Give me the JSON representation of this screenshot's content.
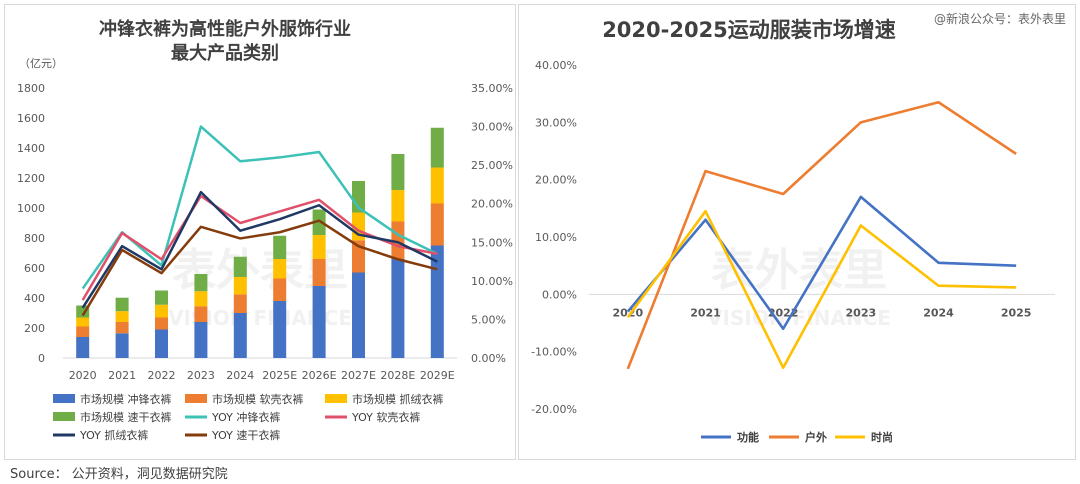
{
  "source": "Source：  公开资料，洞见数据研究院",
  "right_watermark": "@新浪公众号：表外表里",
  "chart_data": [
    {
      "type": "bar",
      "title_lines": [
        "冲锋衣裤为高性能户外服饰行业",
        "最大产品类别"
      ],
      "unit_label": "（亿元）",
      "categories": [
        "2020",
        "2021",
        "2022",
        "2023",
        "2024",
        "2025E",
        "2026E",
        "2027E",
        "2028E",
        "2029E"
      ],
      "ylim": [
        0,
        1800
      ],
      "yticks": [
        0,
        200,
        400,
        600,
        800,
        1000,
        1200,
        1400,
        1600,
        1800
      ],
      "y2lim": [
        0,
        35
      ],
      "y2ticks": [
        "0.00%",
        "5.00%",
        "10.00%",
        "15.00%",
        "20.00%",
        "25.00%",
        "30.00%",
        "35.00%"
      ],
      "bar_series": [
        {
          "name": "市场规模 冲锋衣裤",
          "color": "#4472c4",
          "values": [
            140,
            165,
            190,
            240,
            300,
            380,
            480,
            570,
            660,
            750
          ]
        },
        {
          "name": "市场规模 软壳衣裤",
          "color": "#ed7d31",
          "values": [
            70,
            75,
            80,
            105,
            125,
            150,
            180,
            215,
            250,
            280
          ]
        },
        {
          "name": "市场规模 抓绒衣裤",
          "color": "#ffc000",
          "values": [
            60,
            72,
            85,
            100,
            115,
            130,
            160,
            185,
            210,
            240
          ]
        },
        {
          "name": "市场规模 速干衣裤",
          "color": "#70ad47",
          "values": [
            80,
            90,
            95,
            115,
            135,
            155,
            170,
            210,
            240,
            265
          ]
        }
      ],
      "line_series": [
        {
          "name": "YOY 冲锋衣裤",
          "color": "#3cc1b6",
          "values": [
            9.0,
            16.3,
            12.0,
            30.0,
            25.5,
            26.0,
            26.7,
            19.5,
            16.0,
            13.5
          ]
        },
        {
          "name": "YOY 软壳衣裤",
          "color": "#e0506a",
          "values": [
            7.5,
            16.2,
            12.8,
            21.0,
            17.5,
            19.0,
            20.5,
            16.5,
            14.5,
            13.5
          ]
        },
        {
          "name": "YOY 抓绒衣裤",
          "color": "#1f3864",
          "values": [
            6.5,
            14.5,
            11.5,
            21.5,
            16.5,
            18.0,
            19.8,
            16.0,
            15.0,
            12.5
          ]
        },
        {
          "name": "YOY 速干衣裤",
          "color": "#843c0c",
          "values": [
            5.5,
            14.0,
            11.0,
            17.0,
            15.5,
            16.3,
            17.8,
            14.5,
            12.8,
            11.5
          ]
        }
      ]
    },
    {
      "type": "line",
      "title": "2020-2025运动服装市场增速",
      "categories": [
        "2020",
        "2021",
        "2022",
        "2023",
        "2024",
        "2025"
      ],
      "ylim": [
        -20,
        40
      ],
      "yticks": [
        "-20.00%",
        "-10.00%",
        "0.00%",
        "10.00%",
        "20.00%",
        "30.00%",
        "40.00%"
      ],
      "series": [
        {
          "name": "功能",
          "color": "#4472c4",
          "values": [
            -3,
            13,
            -6,
            17,
            5.5,
            5
          ]
        },
        {
          "name": "户外",
          "color": "#ed7d31",
          "values": [
            -13,
            21.5,
            17.5,
            30,
            33.5,
            24.5
          ]
        },
        {
          "name": "时尚",
          "color": "#ffc000",
          "values": [
            -4,
            14.5,
            -12.8,
            12,
            1.5,
            1.2
          ]
        }
      ]
    }
  ]
}
